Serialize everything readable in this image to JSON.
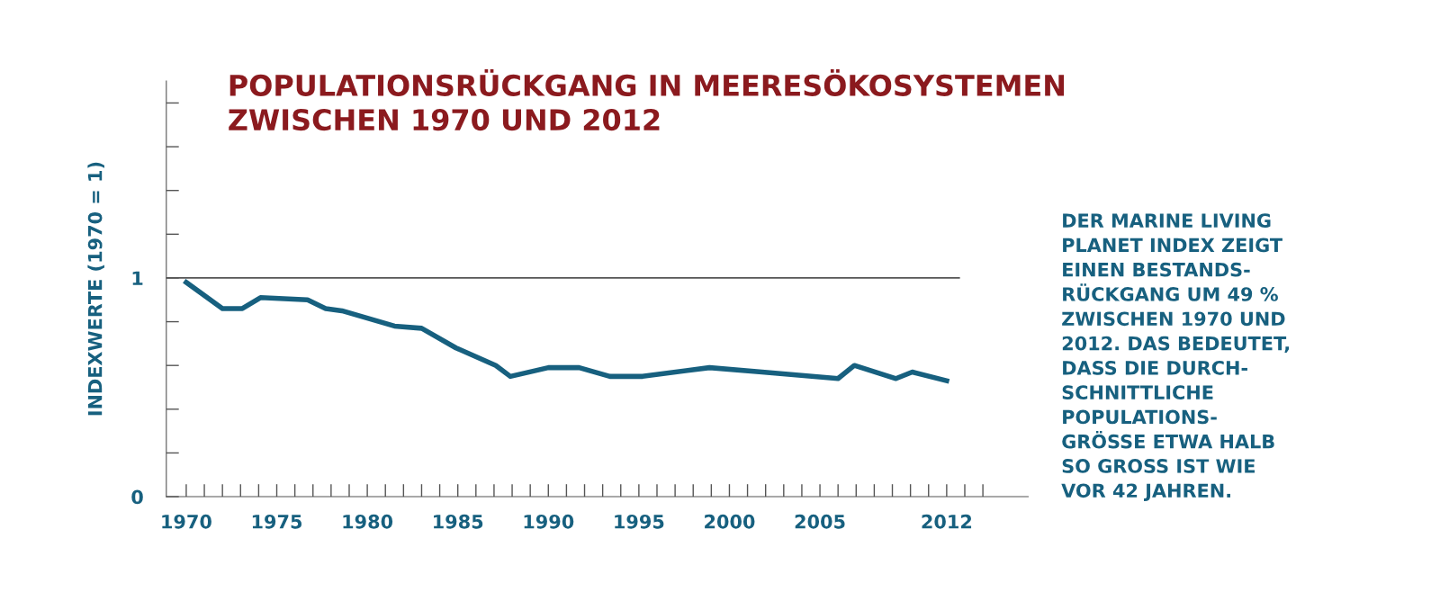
{
  "chart_data": {
    "type": "line",
    "title": "POPULATIONSRÜCKGANG IN MEERESÖKOSYSTEMEN\nZWISCHEN 1970 UND 2012",
    "ylabel": "INDEXWERTE (1970 = 1)",
    "annotations": [
      "DER MARINE LIVING\nPLANET INDEX ZEIGT\nEINEN BESTANDS-\nRÜCKGANG UM 49 %\nZWISCHEN 1970 UND\n2012. DAS BEDEUTET,\nDASS DIE DURCH-\nSCHNITTLICHE\nPOPULATIONS-\nGRÖSSE ETWA HALB\nSO GROSS IST WIE\nVOR 42 JAHREN."
    ],
    "x": [
      1970,
      1972,
      1973.1,
      1974.1,
      1976.7,
      1977.7,
      1978.6,
      1981.5,
      1983,
      1984.9,
      1987.1,
      1987.9,
      1990,
      1991.7,
      1993.4,
      1995.2,
      1998.9,
      2001.8,
      2006,
      2006.9,
      2009.2,
      2010.1,
      2012
    ],
    "series": [
      {
        "color": "#17607f",
        "values": [
          0.98,
          0.86,
          0.86,
          0.91,
          0.9,
          0.86,
          0.85,
          0.78,
          0.77,
          0.68,
          0.6,
          0.55,
          0.59,
          0.59,
          0.55,
          0.55,
          0.59,
          0.57,
          0.54,
          0.6,
          0.54,
          0.57,
          0.53
        ]
      }
    ],
    "xlim": [
      1968.9,
      2016.5
    ],
    "xticks": [
      {
        "value": 1970,
        "label": "1970"
      },
      {
        "value": 1971,
        "label": null
      },
      {
        "value": 1972,
        "label": null
      },
      {
        "value": 1973,
        "label": null
      },
      {
        "value": 1974,
        "label": null
      },
      {
        "value": 1975,
        "label": "1975"
      },
      {
        "value": 1976,
        "label": null
      },
      {
        "value": 1977,
        "label": null
      },
      {
        "value": 1978,
        "label": null
      },
      {
        "value": 1979,
        "label": null
      },
      {
        "value": 1980,
        "label": "1980"
      },
      {
        "value": 1981,
        "label": null
      },
      {
        "value": 1982,
        "label": null
      },
      {
        "value": 1983,
        "label": null
      },
      {
        "value": 1984,
        "label": null
      },
      {
        "value": 1985,
        "label": "1985"
      },
      {
        "value": 1986,
        "label": null
      },
      {
        "value": 1987,
        "label": null
      },
      {
        "value": 1988,
        "label": null
      },
      {
        "value": 1989,
        "label": null
      },
      {
        "value": 1990,
        "label": "1990"
      },
      {
        "value": 1991,
        "label": null
      },
      {
        "value": 1992,
        "label": null
      },
      {
        "value": 1993,
        "label": null
      },
      {
        "value": 1994,
        "label": null
      },
      {
        "value": 1995,
        "label": "1995"
      },
      {
        "value": 1996,
        "label": null
      },
      {
        "value": 1997,
        "label": null
      },
      {
        "value": 1998,
        "label": null
      },
      {
        "value": 1999,
        "label": null
      },
      {
        "value": 2000,
        "label": "2000"
      },
      {
        "value": 2001,
        "label": null
      },
      {
        "value": 2002,
        "label": null
      },
      {
        "value": 2003,
        "label": null
      },
      {
        "value": 2004,
        "label": null
      },
      {
        "value": 2005,
        "label": "2005"
      },
      {
        "value": 2006,
        "label": null
      },
      {
        "value": 2007,
        "label": null
      },
      {
        "value": 2008,
        "label": null
      },
      {
        "value": 2009,
        "label": null
      },
      {
        "value": 2010,
        "label": null
      },
      {
        "value": 2011,
        "label": null
      },
      {
        "value": 2012,
        "label": "2012"
      },
      {
        "value": 2013,
        "label": null
      },
      {
        "value": 2014,
        "label": null
      }
    ],
    "ylim": [
      0,
      1.9
    ],
    "yticks": [
      0,
      {
        "value": 0.2,
        "label": null
      },
      {
        "value": 0.4,
        "label": null
      },
      {
        "value": 0.6,
        "label": null
      },
      {
        "value": 0.8,
        "label": null
      },
      1,
      {
        "value": 1.2,
        "label": null
      },
      {
        "value": 1.4,
        "label": null
      },
      {
        "value": 1.6,
        "label": null
      },
      {
        "value": 1.8,
        "label": null
      }
    ],
    "ref_lines": [
      {
        "axis": "y",
        "value": 1,
        "color": "#555555"
      }
    ],
    "grid": false,
    "legend": false,
    "marker": "none",
    "line_style": "solid"
  }
}
